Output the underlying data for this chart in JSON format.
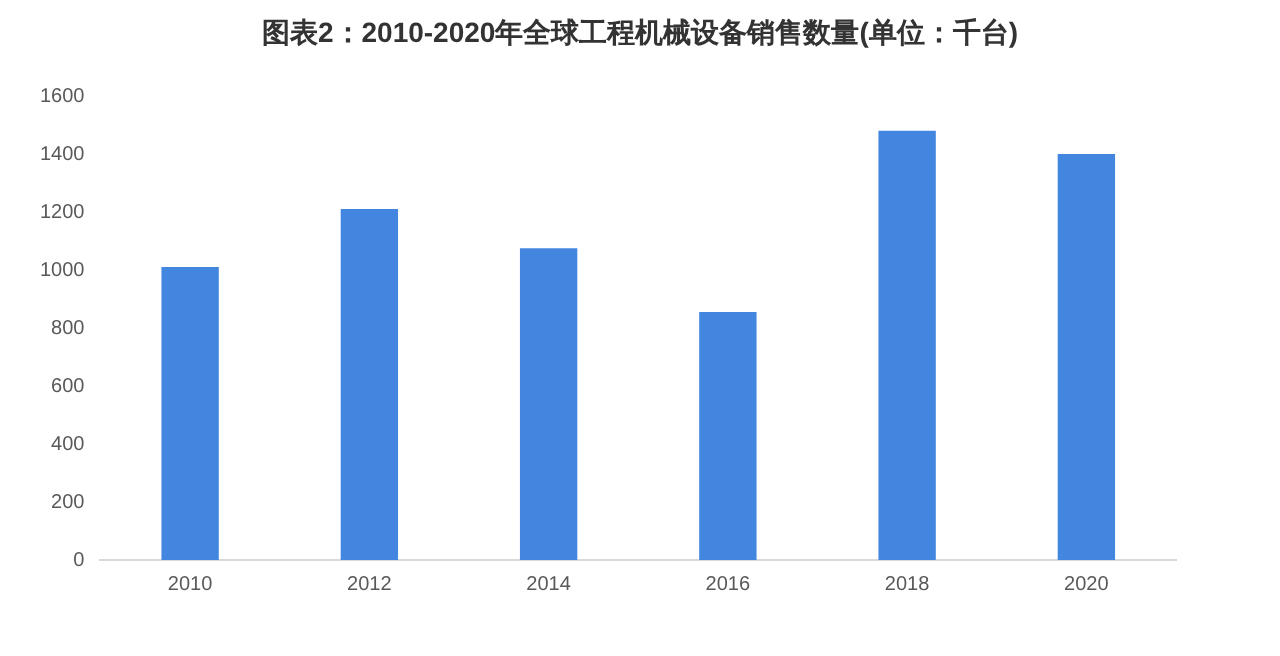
{
  "chart_data": {
    "type": "bar",
    "title": "图表2：2010-2020年全球工程机械设备销售数量(单位：千台)",
    "categories": [
      "2010",
      "2012",
      "2014",
      "2016",
      "2018",
      "2020"
    ],
    "values": [
      1010,
      1210,
      1075,
      855,
      1480,
      1400
    ],
    "color": "#4286e0",
    "ylim": [
      0,
      1600
    ],
    "yticks": [
      0,
      200,
      400,
      600,
      800,
      1000,
      1200,
      1400,
      1600
    ],
    "grid": false,
    "legend": false
  }
}
